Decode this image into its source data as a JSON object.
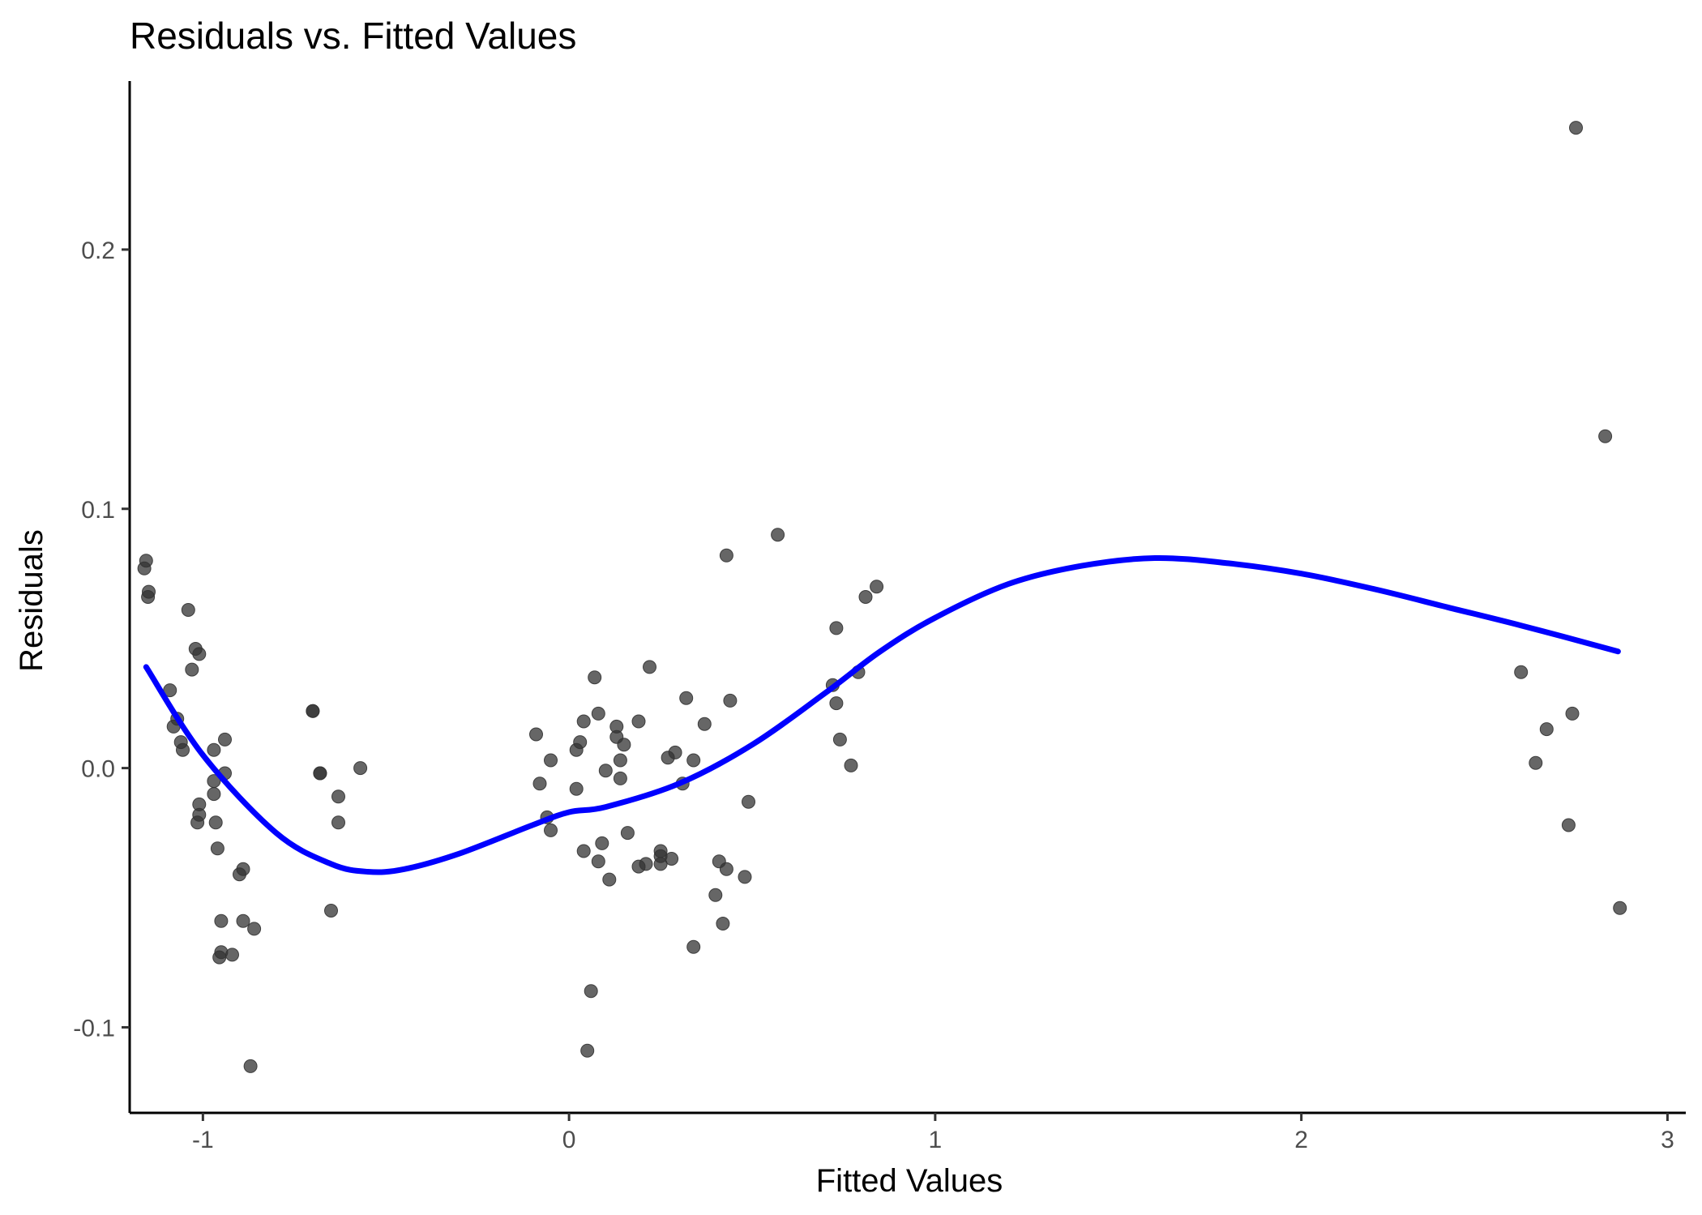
{
  "chart_data": {
    "type": "scatter",
    "title": "Residuals vs. Fitted Values",
    "xlabel": "Fitted Values",
    "ylabel": "Residuals",
    "xlim": [
      -1.2,
      3.05
    ],
    "ylim": [
      -0.133,
      0.265
    ],
    "x_ticks": [
      -1,
      0,
      1,
      2,
      3
    ],
    "x_tick_labels": [
      "-1",
      "0",
      "1",
      "2",
      "3"
    ],
    "y_ticks": [
      -0.1,
      0.0,
      0.1,
      0.2
    ],
    "y_tick_labels": [
      "-0.1",
      "0.0",
      "0.1",
      "0.2"
    ],
    "grid": false,
    "point_color": "#333333",
    "point_opacity": 0.75,
    "smooth_color": "#0000FF",
    "points": [
      [
        -1.16,
        0.077
      ],
      [
        -1.155,
        0.08
      ],
      [
        -1.15,
        0.066
      ],
      [
        -1.148,
        0.068
      ],
      [
        -1.04,
        0.061
      ],
      [
        -1.02,
        0.046
      ],
      [
        -1.01,
        0.044
      ],
      [
        -1.03,
        0.038
      ],
      [
        -1.09,
        0.03
      ],
      [
        -1.08,
        0.016
      ],
      [
        -1.07,
        0.019
      ],
      [
        -1.06,
        0.01
      ],
      [
        -1.055,
        0.007
      ],
      [
        -0.94,
        0.011
      ],
      [
        -0.97,
        0.007
      ],
      [
        -0.94,
        -0.002
      ],
      [
        -0.97,
        -0.005
      ],
      [
        -1.01,
        -0.014
      ],
      [
        -1.01,
        -0.018
      ],
      [
        -1.015,
        -0.021
      ],
      [
        -0.97,
        -0.01
      ],
      [
        -0.965,
        -0.021
      ],
      [
        -0.96,
        -0.031
      ],
      [
        -0.9,
        -0.041
      ],
      [
        -0.89,
        -0.039
      ],
      [
        -0.95,
        -0.059
      ],
      [
        -0.89,
        -0.059
      ],
      [
        -0.86,
        -0.062
      ],
      [
        -0.95,
        -0.071
      ],
      [
        -0.955,
        -0.073
      ],
      [
        -0.92,
        -0.072
      ],
      [
        -0.87,
        -0.115
      ],
      [
        -0.7,
        0.022
      ],
      [
        -0.7,
        0.022
      ],
      [
        -0.68,
        -0.002
      ],
      [
        -0.68,
        -0.002
      ],
      [
        -0.63,
        -0.011
      ],
      [
        -0.63,
        -0.021
      ],
      [
        -0.65,
        -0.055
      ],
      [
        -0.57,
        0.0
      ],
      [
        -0.09,
        0.013
      ],
      [
        -0.08,
        -0.006
      ],
      [
        -0.06,
        -0.019
      ],
      [
        -0.05,
        -0.024
      ],
      [
        -0.05,
        0.003
      ],
      [
        0.02,
        0.007
      ],
      [
        0.03,
        0.01
      ],
      [
        0.04,
        0.018
      ],
      [
        0.07,
        0.035
      ],
      [
        0.08,
        0.021
      ],
      [
        0.02,
        -0.008
      ],
      [
        0.04,
        -0.032
      ],
      [
        0.08,
        -0.036
      ],
      [
        0.09,
        -0.029
      ],
      [
        0.1,
        -0.001
      ],
      [
        0.11,
        -0.043
      ],
      [
        0.13,
        0.016
      ],
      [
        0.13,
        0.012
      ],
      [
        0.14,
        0.003
      ],
      [
        0.15,
        0.009
      ],
      [
        0.14,
        -0.004
      ],
      [
        0.16,
        -0.025
      ],
      [
        0.19,
        0.018
      ],
      [
        0.19,
        -0.038
      ],
      [
        0.21,
        -0.037
      ],
      [
        0.22,
        0.039
      ],
      [
        0.25,
        -0.032
      ],
      [
        0.25,
        -0.034
      ],
      [
        0.25,
        -0.037
      ],
      [
        0.27,
        0.004
      ],
      [
        0.29,
        0.006
      ],
      [
        0.28,
        -0.035
      ],
      [
        0.31,
        -0.006
      ],
      [
        0.32,
        0.027
      ],
      [
        0.34,
        0.003
      ],
      [
        0.37,
        0.017
      ],
      [
        0.34,
        -0.069
      ],
      [
        0.06,
        -0.086
      ],
      [
        0.05,
        -0.109
      ],
      [
        0.4,
        -0.049
      ],
      [
        0.41,
        -0.036
      ],
      [
        0.42,
        -0.06
      ],
      [
        0.43,
        -0.039
      ],
      [
        0.43,
        0.082
      ],
      [
        0.44,
        0.026
      ],
      [
        0.48,
        -0.042
      ],
      [
        0.49,
        -0.013
      ],
      [
        0.57,
        0.09
      ],
      [
        0.73,
        0.054
      ],
      [
        0.72,
        0.032
      ],
      [
        0.73,
        0.025
      ],
      [
        0.74,
        0.011
      ],
      [
        0.77,
        0.001
      ],
      [
        0.79,
        0.037
      ],
      [
        0.81,
        0.066
      ],
      [
        0.84,
        0.07
      ],
      [
        2.6,
        0.037
      ],
      [
        2.64,
        0.002
      ],
      [
        2.67,
        0.015
      ],
      [
        2.73,
        -0.022
      ],
      [
        2.74,
        0.021
      ],
      [
        2.75,
        0.247
      ],
      [
        2.83,
        0.128
      ],
      [
        2.87,
        -0.054
      ]
    ],
    "smooth": [
      [
        -1.155,
        0.039
      ],
      [
        -1.0,
        0.005
      ],
      [
        -0.8,
        -0.025
      ],
      [
        -0.65,
        -0.037
      ],
      [
        -0.55,
        -0.04
      ],
      [
        -0.45,
        -0.039
      ],
      [
        -0.3,
        -0.033
      ],
      [
        -0.1,
        -0.022
      ],
      [
        0.0,
        -0.017
      ],
      [
        0.1,
        -0.015
      ],
      [
        0.3,
        -0.006
      ],
      [
        0.5,
        0.009
      ],
      [
        0.7,
        0.029
      ],
      [
        0.85,
        0.045
      ],
      [
        1.0,
        0.058
      ],
      [
        1.2,
        0.071
      ],
      [
        1.4,
        0.078
      ],
      [
        1.6,
        0.081
      ],
      [
        1.8,
        0.079
      ],
      [
        2.0,
        0.075
      ],
      [
        2.2,
        0.069
      ],
      [
        2.4,
        0.062
      ],
      [
        2.6,
        0.055
      ],
      [
        2.865,
        0.045
      ]
    ]
  }
}
